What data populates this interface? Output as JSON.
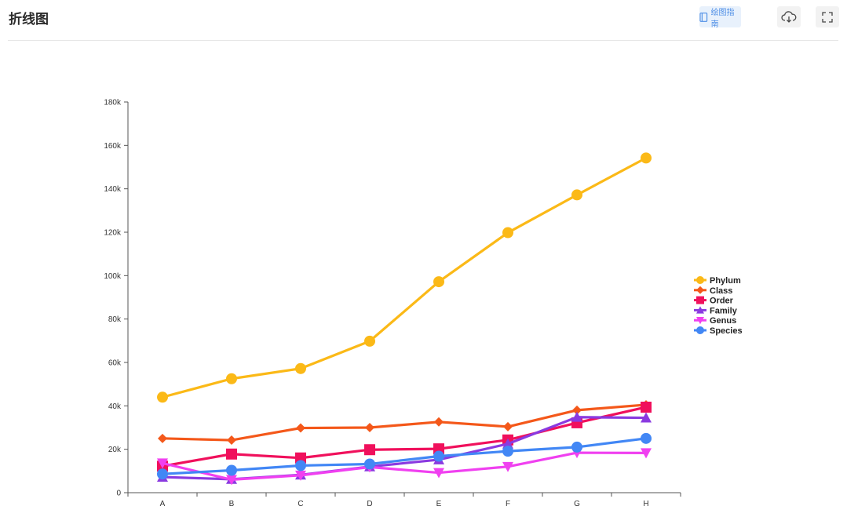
{
  "header": {
    "title": "折线图",
    "guide_label": "绘图指南",
    "guide_icon": "book-icon",
    "download_icon": "cloud-download-icon",
    "fullscreen_icon": "fullscreen-icon"
  },
  "colors": {
    "accent": "#4f8fe6",
    "guide_bg": "#e8f1fc"
  },
  "chart_data": {
    "type": "line",
    "title": "",
    "xlabel": "",
    "ylabel": "",
    "categories": [
      "A",
      "B",
      "C",
      "D",
      "E",
      "F",
      "G",
      "H"
    ],
    "ylim": [
      0,
      180000
    ],
    "yticks": [
      0,
      20000,
      40000,
      60000,
      80000,
      100000,
      120000,
      140000,
      160000,
      180000
    ],
    "ytick_labels": [
      "0",
      "20k",
      "40k",
      "60k",
      "80k",
      "100k",
      "120k",
      "140k",
      "160k",
      "180k"
    ],
    "grid": false,
    "legend_position": "right",
    "series": [
      {
        "name": "Phylum",
        "color": "#fbb917",
        "marker": "circle",
        "values": [
          44000,
          52500,
          57200,
          69800,
          97200,
          119800,
          137200,
          154200
        ]
      },
      {
        "name": "Class",
        "color": "#f4581a",
        "marker": "diamond",
        "values": [
          25000,
          24200,
          29800,
          30000,
          32600,
          30400,
          38000,
          40500
        ]
      },
      {
        "name": "Order",
        "color": "#f0105c",
        "marker": "square",
        "values": [
          12200,
          17800,
          16000,
          19800,
          20200,
          24300,
          32200,
          39400
        ]
      },
      {
        "name": "Family",
        "color": "#8a3ae0",
        "marker": "triangle",
        "values": [
          7200,
          6200,
          8200,
          12000,
          15200,
          22500,
          34800,
          34500
        ]
      },
      {
        "name": "Genus",
        "color": "#f040f0",
        "marker": "triangle-down",
        "values": [
          13600,
          6000,
          8000,
          11800,
          9200,
          12000,
          18400,
          18300
        ]
      },
      {
        "name": "Species",
        "color": "#4287f5",
        "marker": "circle",
        "values": [
          8600,
          10300,
          12500,
          13200,
          16800,
          19100,
          21000,
          25000
        ]
      }
    ]
  }
}
